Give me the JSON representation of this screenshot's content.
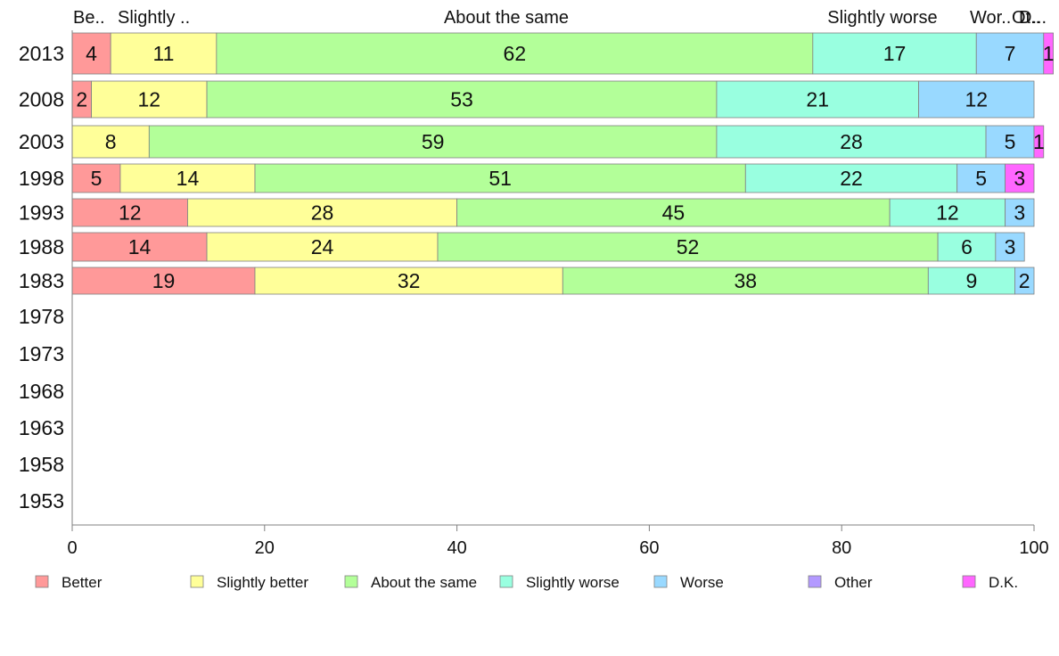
{
  "chart_data": {
    "type": "bar",
    "orientation": "horizontal",
    "stacked": true,
    "categories": [
      "2013",
      "2008",
      "2003",
      "1998",
      "1993",
      "1988",
      "1983",
      "1978",
      "1973",
      "1968",
      "1963",
      "1958",
      "1953"
    ],
    "series": [
      {
        "name": "Better",
        "color": "#ff9999",
        "values": [
          4,
          2,
          0,
          5,
          12,
          14,
          19,
          null,
          null,
          null,
          null,
          null,
          null
        ]
      },
      {
        "name": "Slightly better",
        "color": "#ffff99",
        "values": [
          11,
          12,
          8,
          14,
          28,
          24,
          32,
          null,
          null,
          null,
          null,
          null,
          null
        ]
      },
      {
        "name": "About the same",
        "color": "#b3ff99",
        "values": [
          62,
          53,
          59,
          51,
          45,
          52,
          38,
          null,
          null,
          null,
          null,
          null,
          null
        ]
      },
      {
        "name": "Slightly worse",
        "color": "#99ffe0",
        "values": [
          17,
          21,
          28,
          22,
          12,
          6,
          9,
          null,
          null,
          null,
          null,
          null,
          null
        ]
      },
      {
        "name": "Worse",
        "color": "#99d9ff",
        "values": [
          7,
          12,
          5,
          5,
          3,
          3,
          2,
          null,
          null,
          null,
          null,
          null,
          null
        ]
      },
      {
        "name": "Other",
        "color": "#b399ff",
        "values": [
          0,
          0,
          0,
          0,
          0,
          0,
          0,
          null,
          null,
          null,
          null,
          null,
          null
        ]
      },
      {
        "name": "D.K.",
        "color": "#ff66ff",
        "values": [
          1,
          0,
          1,
          3,
          0,
          0,
          0,
          null,
          null,
          null,
          null,
          null,
          null
        ]
      }
    ],
    "top_labels": [
      "Be..",
      "Slightly ..",
      "About the same",
      "Slightly worse",
      "Wor..",
      "Ot..",
      "D..."
    ],
    "xlim": [
      0,
      100
    ],
    "xticks": [
      0,
      20,
      40,
      60,
      80,
      100
    ],
    "grid": false,
    "legend_position": "bottom"
  }
}
